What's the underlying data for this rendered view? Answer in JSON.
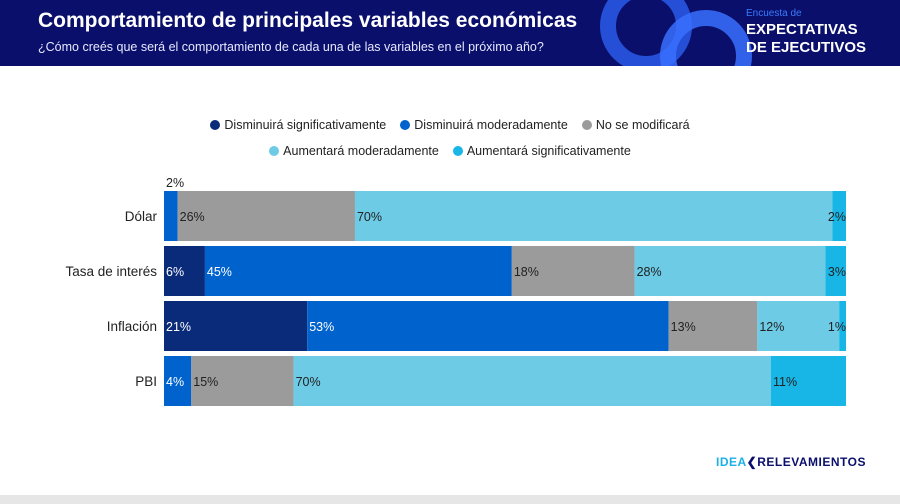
{
  "header": {
    "title": "Comportamiento de principales variables económicas",
    "subtitle": "¿Cómo creés que será el comportamiento de cada una de las variables en el próximo año?",
    "brand_small": "Encuesta de",
    "brand_line1": "EXPECTATIVAS",
    "brand_line2": "DE EJECUTIVOS"
  },
  "footer": {
    "logo_a": "IDEA",
    "logo_b": "RELEVAMIENTOS"
  },
  "chart_data": {
    "type": "bar",
    "orientation": "horizontal",
    "stacked": true,
    "xlim": [
      0,
      100
    ],
    "categories": [
      "Dólar",
      "Tasa de interés",
      "Inflación",
      "PBI"
    ],
    "series": [
      {
        "name": "Disminuirá significativamente",
        "color": "#0a2a7a",
        "values": [
          0,
          6,
          21,
          0
        ]
      },
      {
        "name": "Disminuirá moderadamente",
        "color": "#0062cc",
        "values": [
          2,
          45,
          53,
          4
        ]
      },
      {
        "name": "No se modificará",
        "color": "#9b9b9b",
        "values": [
          26,
          18,
          13,
          15
        ]
      },
      {
        "name": "Aumentará moderadamente",
        "color": "#6ecbe6",
        "values": [
          70,
          28,
          12,
          70
        ]
      },
      {
        "name": "Aumentará significativamente",
        "color": "#18b6e6",
        "values": [
          2,
          3,
          1,
          11
        ]
      }
    ],
    "legend": "top"
  }
}
